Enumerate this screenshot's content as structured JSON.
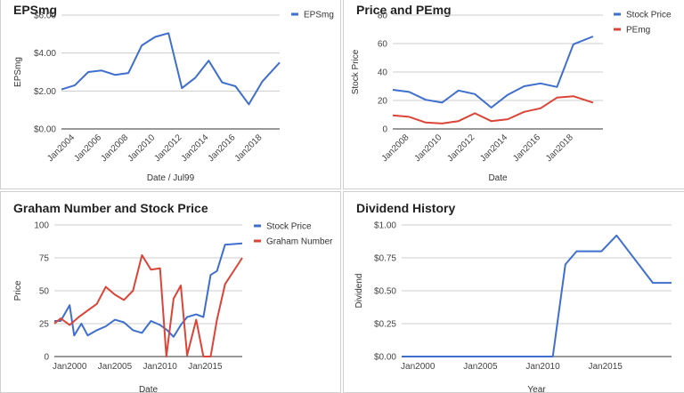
{
  "chart_data": [
    {
      "id": "eps",
      "type": "line",
      "title": "EPSmg",
      "xlabel": "Date / Jul99",
      "ylabel": "EPSmg",
      "xlim": [
        2003.0,
        2019.3
      ],
      "ylim": [
        0,
        6
      ],
      "y_ticks": [
        "$0.00",
        "$2.00",
        "$4.00",
        "$6.00"
      ],
      "x_ticks": [
        "Jan2004",
        "Jan2006",
        "Jan2008",
        "Jan2010",
        "Jan2012",
        "Jan2014",
        "Jan2016",
        "Jan2018"
      ],
      "legend_position": "top-right",
      "grid": true,
      "series": [
        {
          "name": "EPSmg",
          "color": "#3f6fce",
          "x": [
            2003.0,
            2004.0,
            2005.0,
            2006.0,
            2007.0,
            2008.0,
            2009.0,
            2010.0,
            2011.0,
            2012.0,
            2013.0,
            2014.0,
            2015.0,
            2016.0,
            2017.0,
            2018.0,
            2019.3
          ],
          "y": [
            2.08,
            2.3,
            3.0,
            3.08,
            2.85,
            2.95,
            4.4,
            4.85,
            5.05,
            2.15,
            2.7,
            3.6,
            2.45,
            2.25,
            1.3,
            2.5,
            3.5
          ]
        }
      ]
    },
    {
      "id": "price",
      "type": "line",
      "title": "Price and PEmg",
      "xlabel": "Date",
      "ylabel": "Stock Price",
      "xlim": [
        2007.0,
        2019.8
      ],
      "ylim": [
        0,
        80
      ],
      "y_ticks": [
        "0",
        "20",
        "40",
        "60",
        "80"
      ],
      "x_ticks": [
        "Jan2008",
        "Jan2010",
        "Jan2012",
        "Jan2014",
        "Jan2016",
        "Jan2018"
      ],
      "legend_position": "top-right",
      "grid": true,
      "series": [
        {
          "name": "Stock Price",
          "color": "#3f6fce",
          "x": [
            2007.0,
            2008.0,
            2009.0,
            2010.0,
            2011.0,
            2012.0,
            2013.0,
            2014.0,
            2015.0,
            2016.0,
            2017.0,
            2018.0,
            2019.2
          ],
          "y": [
            27.5,
            26.0,
            20.5,
            18.5,
            27.0,
            24.5,
            15.0,
            24.0,
            30.0,
            32.0,
            29.5,
            59.5,
            65.0
          ]
        },
        {
          "name": "PEmg",
          "color": "#db4437",
          "x": [
            2007.0,
            2008.0,
            2009.0,
            2010.0,
            2011.0,
            2012.0,
            2013.0,
            2014.0,
            2015.0,
            2016.0,
            2017.0,
            2018.0,
            2019.2
          ],
          "y": [
            9.5,
            8.5,
            4.5,
            3.8,
            5.5,
            11.0,
            5.5,
            6.8,
            12.0,
            14.5,
            22.0,
            23.0,
            18.5
          ]
        }
      ]
    },
    {
      "id": "graham",
      "type": "line",
      "title": "Graham Number and Stock Price",
      "xlabel": "Date",
      "ylabel": "Price",
      "xlim": [
        1998.3,
        2019.1
      ],
      "ylim": [
        0,
        100
      ],
      "y_ticks": [
        "0",
        "25",
        "50",
        "75",
        "100"
      ],
      "x_ticks": [
        "Jan2000",
        "Jan2005",
        "Jan2010",
        "Jan2015"
      ],
      "legend_position": "top-right",
      "grid": true,
      "series": [
        {
          "name": "Stock Price",
          "color": "#3f6fce",
          "x": [
            1998.3,
            1999.0,
            2000.0,
            2000.5,
            2001.3,
            2002.0,
            2003.0,
            2004.0,
            2005.0,
            2006.0,
            2007.0,
            2008.0,
            2009.0,
            2010.0,
            2010.8,
            2011.5,
            2012.3,
            2013.0,
            2014.0,
            2014.8,
            2015.6,
            2016.3,
            2017.2,
            2019.1
          ],
          "y": [
            27,
            27,
            39,
            16,
            25,
            16,
            20,
            23,
            28,
            26,
            20,
            18,
            27,
            24,
            20,
            15,
            24,
            30,
            32,
            30,
            62,
            65,
            85,
            86
          ]
        },
        {
          "name": "Graham Number",
          "color": "#db4437",
          "x": [
            1998.3,
            1999.0,
            2000.0,
            2001.0,
            2002.0,
            2003.0,
            2004.0,
            2005.0,
            2006.0,
            2007.0,
            2008.0,
            2009.0,
            2010.0,
            2010.7,
            2011.5,
            2012.3,
            2013.0,
            2014.0,
            2014.8,
            2015.6,
            2016.3,
            2017.2,
            2019.1
          ],
          "y": [
            25,
            29,
            24,
            30,
            35,
            40,
            53,
            47,
            43,
            50,
            77,
            66,
            67,
            0,
            44,
            54,
            1,
            28,
            0,
            0,
            28,
            55,
            75
          ]
        }
      ]
    },
    {
      "id": "dividend",
      "type": "line",
      "title": "Dividend History",
      "xlabel": "Year",
      "ylabel": "Dividend",
      "xlim": [
        1998.7,
        2020.3
      ],
      "ylim": [
        0,
        1
      ],
      "y_ticks": [
        "$0.00",
        "$0.25",
        "$0.50",
        "$0.75",
        "$1.00"
      ],
      "x_ticks": [
        "Jan2000",
        "Jan2005",
        "Jan2010",
        "Jan2015"
      ],
      "grid": true,
      "series": [
        {
          "name": "",
          "color": "#3f6fce",
          "x": [
            1998.7,
            2010.8,
            2011.8,
            2012.7,
            2014.7,
            2015.9,
            2018.8,
            2020.3
          ],
          "y": [
            0,
            0,
            0.7,
            0.8,
            0.8,
            0.92,
            0.56,
            0.56
          ]
        }
      ]
    }
  ]
}
